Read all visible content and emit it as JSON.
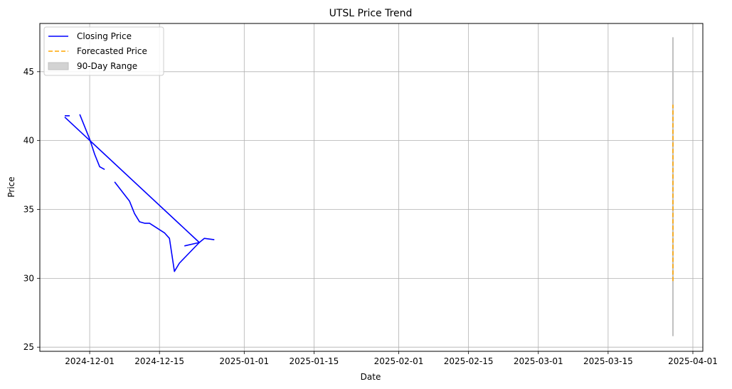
{
  "chart_data": {
    "type": "line",
    "title": "UTSL Price Trend",
    "xlabel": "Date",
    "ylabel": "Price",
    "xlim": [
      "2024-11-21",
      "2025-04-03"
    ],
    "ylim": [
      24.7,
      48.5
    ],
    "grid": true,
    "legend_position": "top-left",
    "x_ticks": [
      "2024-12-01",
      "2024-12-15",
      "2025-01-01",
      "2025-01-15",
      "2025-02-01",
      "2025-02-15",
      "2025-03-01",
      "2025-03-15",
      "2025-04-01"
    ],
    "y_ticks": [
      25,
      30,
      35,
      40,
      45
    ],
    "series": [
      {
        "name": "Closing Price",
        "color": "#0000ff",
        "style": "solid",
        "segments": [
          [
            [
              "2024-11-26",
              41.8
            ],
            [
              "2024-11-27",
              41.8
            ]
          ],
          [
            [
              "2024-11-29",
              41.9
            ],
            [
              "2024-12-01",
              40.1
            ],
            [
              "2024-12-02",
              39.0
            ],
            [
              "2024-12-03",
              38.1
            ],
            [
              "2024-12-04",
              37.9
            ]
          ],
          [
            [
              "2024-11-26",
              41.7
            ],
            [
              "2024-12-23",
              32.6
            ],
            [
              "2024-12-19",
              31.1
            ],
            [
              "2024-12-18",
              30.5
            ],
            [
              "2024-12-17",
              32.9
            ],
            [
              "2024-12-16",
              33.3
            ],
            [
              "2024-12-13",
              34.0
            ],
            [
              "2024-12-12",
              34.0
            ],
            [
              "2024-12-11",
              34.1
            ],
            [
              "2024-12-10",
              34.7
            ],
            [
              "2024-12-09",
              35.6
            ],
            [
              "2024-12-06",
              37.0
            ]
          ],
          [
            [
              "2024-12-20",
              32.35
            ],
            [
              "2024-12-23",
              32.6
            ],
            [
              "2024-12-24",
              32.9
            ],
            [
              "2024-12-26",
              32.8
            ]
          ]
        ]
      },
      {
        "name": "Forecasted Price",
        "color": "#ffa500",
        "style": "dashed",
        "segments": [
          [
            [
              "2025-03-28",
              29.8
            ],
            [
              "2025-03-28",
              42.6
            ]
          ]
        ]
      },
      {
        "name": "90-Day Range",
        "color": "#c0c0c0",
        "style": "band",
        "range": {
          "x": "2025-03-28",
          "low": 25.8,
          "high": 47.5
        }
      }
    ]
  }
}
